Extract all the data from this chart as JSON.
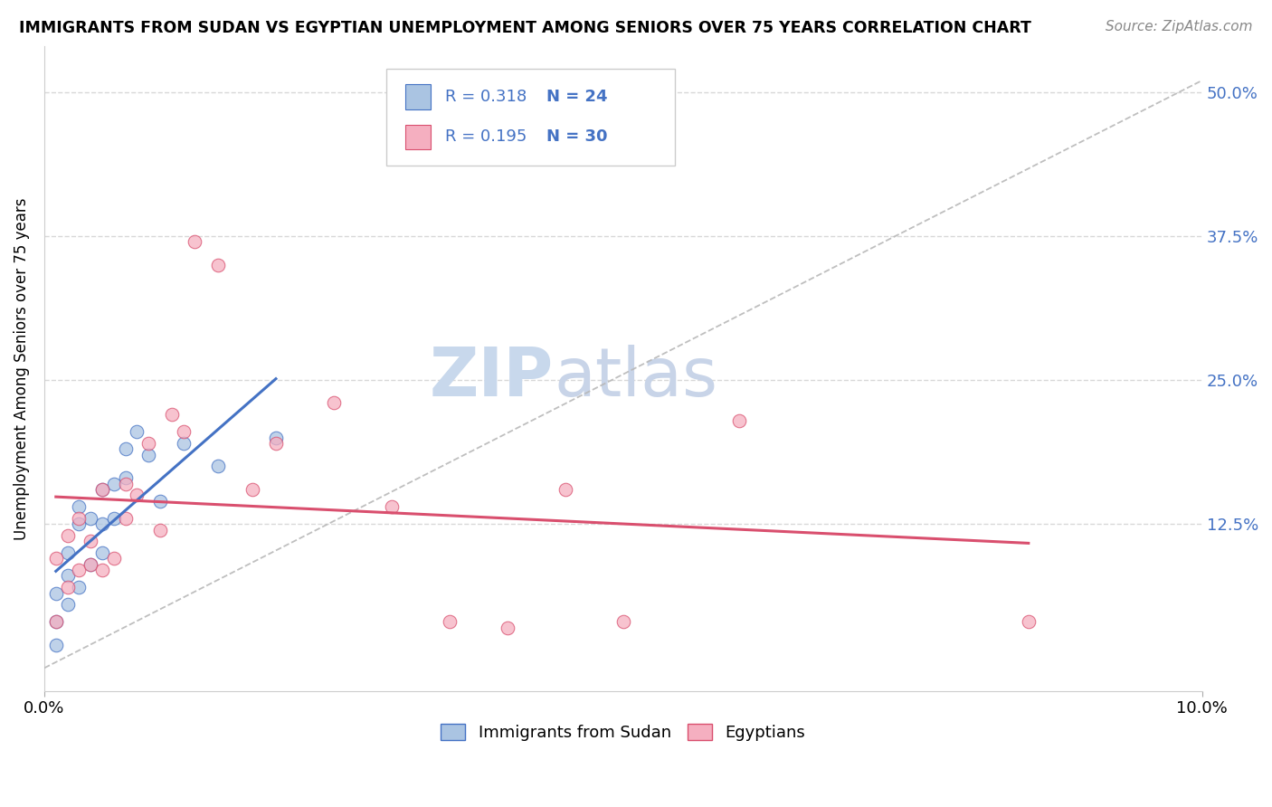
{
  "title": "IMMIGRANTS FROM SUDAN VS EGYPTIAN UNEMPLOYMENT AMONG SENIORS OVER 75 YEARS CORRELATION CHART",
  "source": "Source: ZipAtlas.com",
  "ylabel": "Unemployment Among Seniors over 75 years",
  "ytick_labels": [
    "",
    "12.5%",
    "25.0%",
    "37.5%",
    "50.0%"
  ],
  "ytick_values": [
    0,
    0.125,
    0.25,
    0.375,
    0.5
  ],
  "xlim": [
    0,
    0.1
  ],
  "ylim": [
    -0.02,
    0.54
  ],
  "legend_label1": "Immigrants from Sudan",
  "legend_label2": "Egyptians",
  "R1": 0.318,
  "N1": 24,
  "R2": 0.195,
  "N2": 30,
  "color_blue": "#aac4e2",
  "color_pink": "#f5afc0",
  "color_line_blue": "#4472c4",
  "color_line_pink": "#d94f6e",
  "color_trend_gray": "#b8b8b8",
  "background_color": "#ffffff",
  "grid_color": "#d8d8d8",
  "sudan_x": [
    0.001,
    0.001,
    0.001,
    0.002,
    0.002,
    0.002,
    0.003,
    0.003,
    0.003,
    0.004,
    0.004,
    0.005,
    0.005,
    0.005,
    0.006,
    0.006,
    0.007,
    0.007,
    0.008,
    0.009,
    0.01,
    0.012,
    0.015,
    0.02
  ],
  "sudan_y": [
    0.02,
    0.04,
    0.065,
    0.08,
    0.1,
    0.055,
    0.07,
    0.125,
    0.14,
    0.09,
    0.13,
    0.155,
    0.1,
    0.125,
    0.16,
    0.13,
    0.165,
    0.19,
    0.205,
    0.185,
    0.145,
    0.195,
    0.175,
    0.2
  ],
  "egypt_x": [
    0.001,
    0.001,
    0.002,
    0.002,
    0.003,
    0.003,
    0.004,
    0.004,
    0.005,
    0.005,
    0.006,
    0.007,
    0.007,
    0.008,
    0.009,
    0.01,
    0.011,
    0.012,
    0.013,
    0.015,
    0.018,
    0.02,
    0.025,
    0.03,
    0.035,
    0.04,
    0.045,
    0.05,
    0.06,
    0.085
  ],
  "egypt_y": [
    0.04,
    0.095,
    0.07,
    0.115,
    0.085,
    0.13,
    0.09,
    0.11,
    0.085,
    0.155,
    0.095,
    0.13,
    0.16,
    0.15,
    0.195,
    0.12,
    0.22,
    0.205,
    0.37,
    0.35,
    0.155,
    0.195,
    0.23,
    0.14,
    0.04,
    0.035,
    0.155,
    0.04,
    0.215,
    0.04
  ],
  "watermark_zip_color": "#c8d8ec",
  "watermark_atlas_color": "#c8d4e8"
}
